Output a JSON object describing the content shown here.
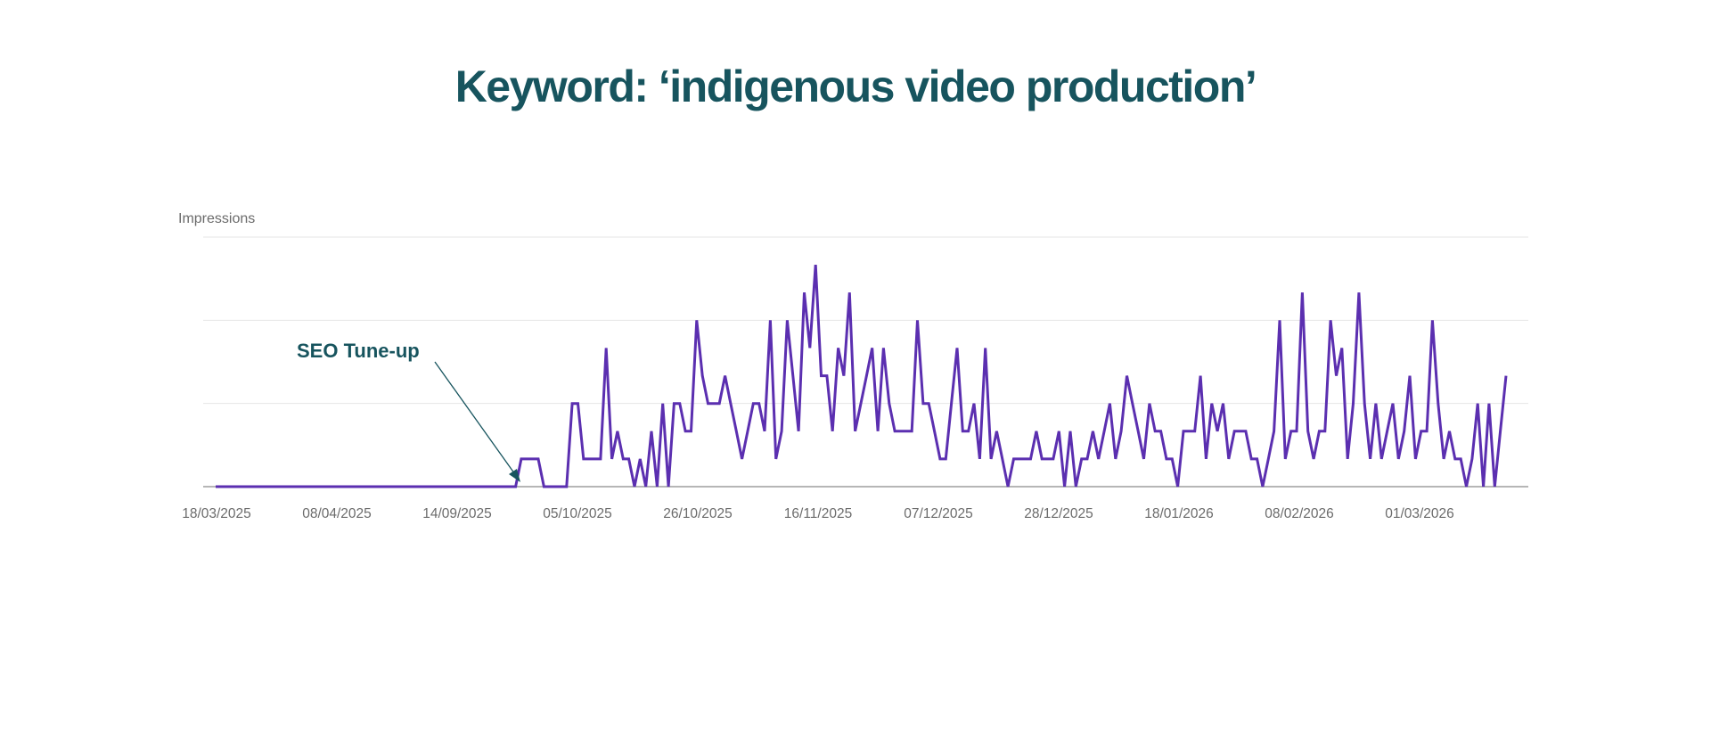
{
  "title": "Keyword: ‘indigenous video production’",
  "colors": {
    "title": "#17545e",
    "line": "#5b2fb0",
    "annotation": "#17545e",
    "gridline": "#e6e6e6",
    "baseline": "#9e9e9e",
    "axis_text": "#6b6b6b"
  },
  "annotation": {
    "label": "SEO Tune-up",
    "arrow_icon": "arrow-pointer"
  },
  "chart_data": {
    "type": "line",
    "title": "Keyword: ‘indigenous video production’",
    "ylabel": "Impressions",
    "xlabel": "",
    "grid": true,
    "legend": null,
    "ylim": [
      0,
      9
    ],
    "yticks_gridlines": [
      0,
      3,
      6,
      9
    ],
    "ytick_labels_visible": false,
    "tick_labels": [
      "18/03/2025",
      "08/04/2025",
      "14/09/2025",
      "05/10/2025",
      "26/10/2025",
      "16/11/2025",
      "07/12/2025",
      "28/12/2025",
      "18/01/2026",
      "08/02/2026",
      "01/03/2026"
    ],
    "annotations": [
      {
        "text": "SEO Tune-up",
        "points_to_index": 43
      }
    ],
    "series": [
      {
        "name": "Impressions",
        "values": [
          0,
          0,
          0,
          0,
          0,
          0,
          0,
          0,
          0,
          0,
          0,
          0,
          0,
          0,
          0,
          0,
          0,
          0,
          0,
          0,
          0,
          0,
          0,
          0,
          0,
          0,
          0,
          0,
          0,
          0,
          0,
          0,
          0,
          0,
          0,
          0,
          0,
          0,
          0,
          0,
          0,
          0,
          0,
          0,
          0,
          0,
          0,
          0,
          0,
          0,
          0,
          0,
          0,
          0,
          1,
          1,
          1,
          1,
          0,
          0,
          0,
          0,
          0,
          3,
          3,
          1,
          1,
          1,
          1,
          5,
          1,
          2,
          1,
          1,
          0,
          1,
          0,
          2,
          0,
          3,
          0,
          3,
          3,
          2,
          2,
          6,
          4,
          3,
          3,
          3,
          4,
          3,
          2,
          1,
          2,
          3,
          3,
          2,
          6,
          1,
          2,
          6,
          4,
          2,
          7,
          5,
          8,
          4,
          4,
          2,
          5,
          4,
          7,
          2,
          3,
          4,
          5,
          2,
          5,
          3,
          2,
          2,
          2,
          2,
          6,
          3,
          3,
          2,
          1,
          1,
          3,
          5,
          2,
          2,
          3,
          1,
          5,
          1,
          2,
          1,
          0,
          1,
          1,
          1,
          1,
          2,
          1,
          1,
          1,
          2,
          0,
          2,
          0,
          1,
          1,
          2,
          1,
          2,
          3,
          1,
          2,
          4,
          3,
          2,
          1,
          3,
          2,
          2,
          1,
          1,
          0,
          2,
          2,
          2,
          4,
          1,
          3,
          2,
          3,
          1,
          2,
          2,
          2,
          1,
          1,
          0,
          1,
          2,
          6,
          1,
          2,
          2,
          7,
          2,
          1,
          2,
          2,
          6,
          4,
          5,
          1,
          3,
          7,
          3,
          1,
          3,
          1,
          2,
          3,
          1,
          2,
          4,
          1,
          2,
          2,
          6,
          3,
          1,
          2,
          1,
          1,
          0,
          1,
          3,
          0,
          3,
          0,
          2,
          4
        ]
      }
    ]
  }
}
